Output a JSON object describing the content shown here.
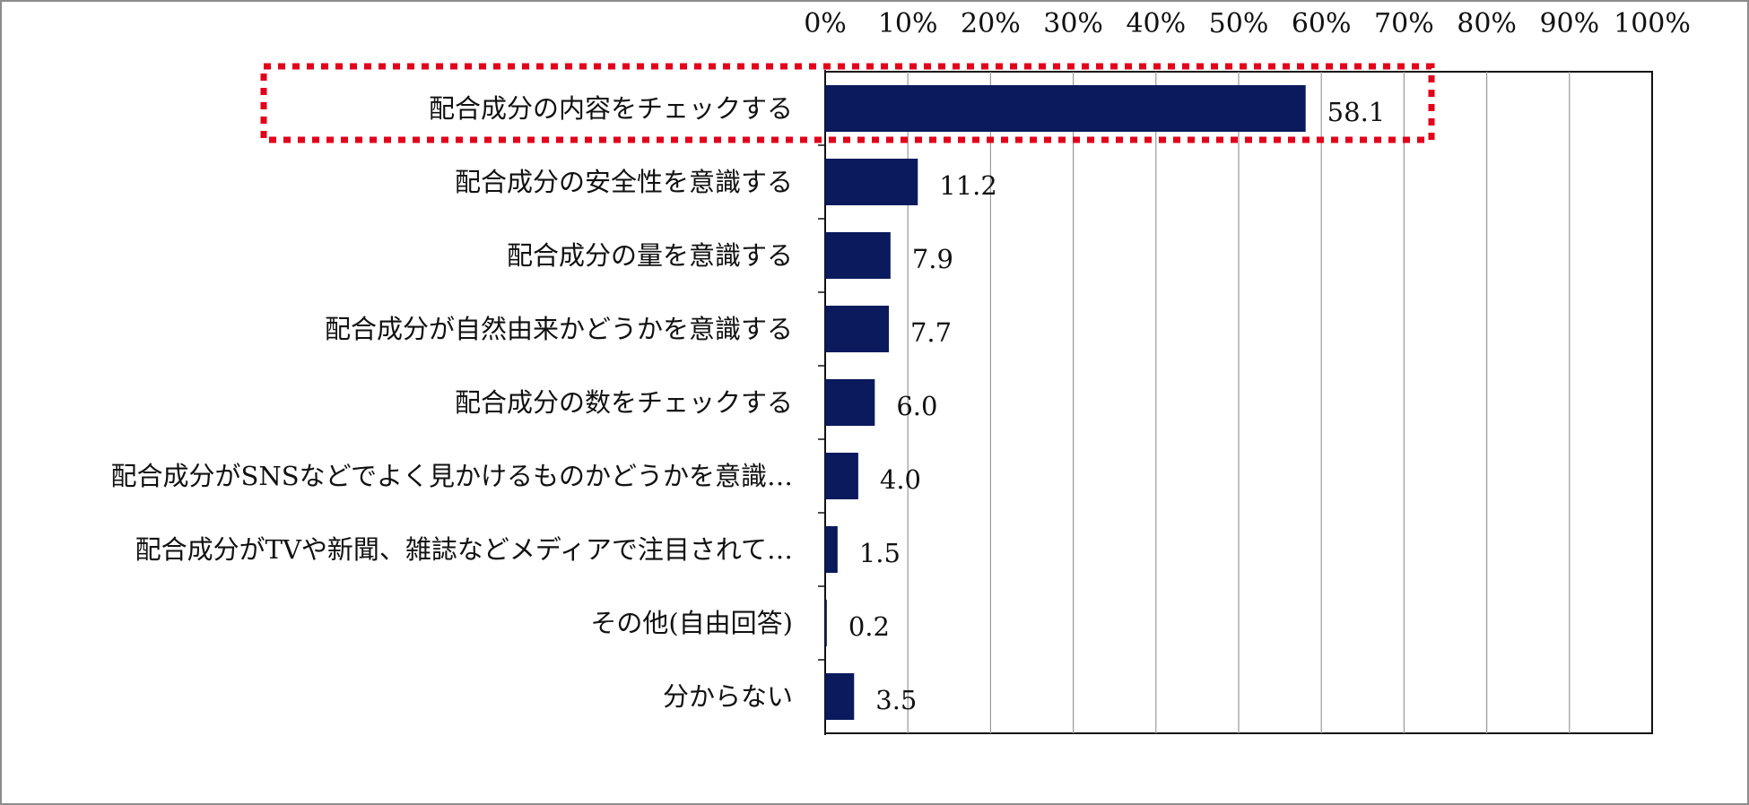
{
  "chart_data": {
    "type": "bar",
    "orientation": "horizontal",
    "categories": [
      "配合成分の内容をチェックする",
      "配合成分の安全性を意識する",
      "配合成分の量を意識する",
      "配合成分が自然由来かどうかを意識する",
      "配合成分の数をチェックする",
      "配合成分がSNSなどでよく見かけるものかどうかを意識…",
      "配合成分がTVや新聞、雑誌などメディアで注目されて…",
      "その他(自由回答)",
      "分からない"
    ],
    "values": [
      58.1,
      11.2,
      7.9,
      7.7,
      6.0,
      4.0,
      1.5,
      0.2,
      3.5
    ],
    "value_labels": [
      "58.1",
      "11.2",
      "7.9",
      "7.7",
      "6.0",
      "4.0",
      "1.5",
      "0.2",
      "3.5"
    ],
    "x_ticks": [
      "0%",
      "10%",
      "20%",
      "30%",
      "40%",
      "50%",
      "60%",
      "70%",
      "80%",
      "90%",
      "100%"
    ],
    "xlim": [
      0,
      100
    ],
    "x_axis_position": "top",
    "grid": true,
    "highlight_index": 0,
    "colors": {
      "bar": "#0a1a5c",
      "grid": "#9a9a9a",
      "axis": "#111111",
      "highlight": "#e3001b"
    }
  }
}
